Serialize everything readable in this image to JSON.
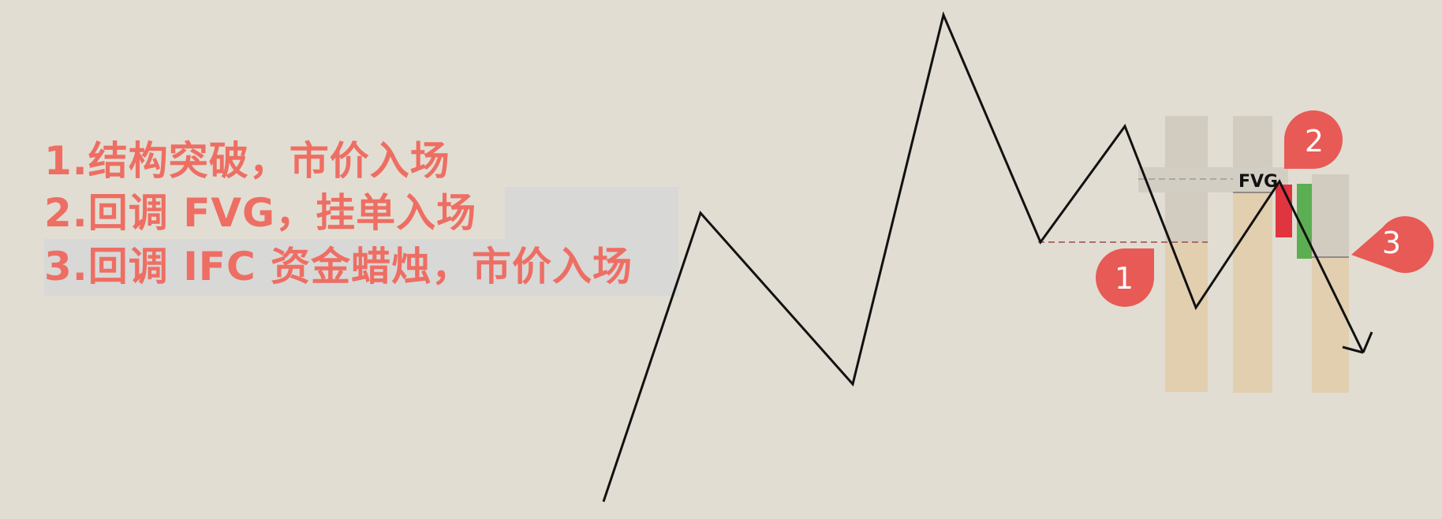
{
  "notes": {
    "line1": "1.结构突破，市价入场",
    "line2": "2.回调 FVG，挂单入场",
    "line3": "3.回调 IFC 资金蜡烛，市价入场"
  },
  "fvg_label": "FVG",
  "markers": [
    {
      "label": "1"
    },
    {
      "label": "2"
    },
    {
      "label": "3"
    }
  ],
  "colors": {
    "background": "#e1ddd2",
    "text": "#ee6e63",
    "marker": "#e85a55",
    "zone": "#e2cfb0",
    "candle_bear": "#e0343f",
    "candle_bull": "#5cae53",
    "line": "#111111",
    "dashed_level": "#9c4a4a"
  },
  "icons": [
    "down-right-arrow-icon",
    "pin-marker-icon"
  ]
}
